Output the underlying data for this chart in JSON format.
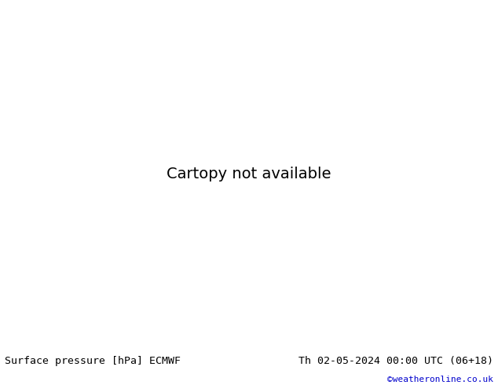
{
  "title_left": "Surface pressure [hPa] ECMWF",
  "title_right": "Th 02-05-2024 00:00 UTC (06+18)",
  "copyright": "©weatheronline.co.uk",
  "land_color": "#b5d98b",
  "sea_color": "#d2e8f0",
  "lake_color": "#d2e8f0",
  "border_color": "#999999",
  "coastline_color": "#999999",
  "title_left_color": "#000000",
  "title_right_color": "#000000",
  "copyright_color": "#0000cc",
  "title_fontsize": 9.5,
  "copyright_fontsize": 8,
  "figsize": [
    6.34,
    4.9
  ],
  "dpi": 100,
  "extent": [
    20,
    130,
    -5,
    57
  ],
  "blue": "#0000cc",
  "black": "#000000",
  "red": "#cc0000"
}
